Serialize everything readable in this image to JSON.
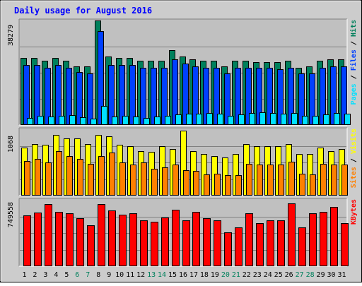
{
  "title": "Daily usage for August 2016",
  "colors": {
    "frame_bg": "#cccccc",
    "panel_bg": "#c0c0c0",
    "title": "#0000ff",
    "hits": "#00805c",
    "files": "#0040ff",
    "pages": "#00e0ff",
    "visits": "#ffff00",
    "sites": "#ff8000",
    "kbytes": "#ff0000",
    "weekend_label": "#00805c",
    "weekday_label": "#000000"
  },
  "chart_data": [
    {
      "type": "bar",
      "panel": "hits-files-pages",
      "max_label": "38279",
      "legend": [
        {
          "name": "Pages",
          "color_key": "pages"
        },
        {
          "name": "Files",
          "color_key": "files"
        },
        {
          "name": "Hits",
          "color_key": "hits"
        }
      ],
      "categories": [
        "1",
        "2",
        "3",
        "4",
        "5",
        "6",
        "7",
        "8",
        "9",
        "10",
        "11",
        "12",
        "13",
        "14",
        "15",
        "16",
        "17",
        "18",
        "19",
        "20",
        "21",
        "22",
        "23",
        "24",
        "25",
        "26",
        "27",
        "28",
        "29",
        "30",
        "31"
      ],
      "weekend_days": [
        "6",
        "7",
        "13",
        "14",
        "20",
        "21",
        "27",
        "28"
      ],
      "ylim": [
        0,
        38279
      ],
      "series": [
        {
          "name": "Hits",
          "color_key": "hits",
          "values": [
            24660,
            24660,
            23600,
            24660,
            23600,
            21510,
            21510,
            38279,
            25190,
            24660,
            24660,
            23600,
            23600,
            23600,
            27300,
            25190,
            24140,
            23600,
            23600,
            21510,
            23600,
            23600,
            23100,
            23100,
            23100,
            23600,
            21000,
            21510,
            23600,
            24140,
            24140
          ]
        },
        {
          "name": "Files",
          "color_key": "files",
          "values": [
            22000,
            22000,
            21000,
            22000,
            21000,
            19500,
            19000,
            34400,
            22000,
            22000,
            22000,
            21000,
            21000,
            21000,
            24100,
            22500,
            21500,
            21000,
            21000,
            19000,
            21000,
            21000,
            21000,
            21000,
            20500,
            21000,
            19000,
            19000,
            21000,
            21500,
            21500
          ]
        },
        {
          "name": "Pages",
          "color_key": "pages",
          "values": [
            2700,
            3300,
            3000,
            3300,
            3500,
            2900,
            2300,
            7000,
            3000,
            3300,
            3000,
            2700,
            3000,
            3300,
            3800,
            4100,
            4100,
            4400,
            4100,
            3300,
            3800,
            4300,
            4600,
            4300,
            4100,
            4400,
            3300,
            3300,
            3900,
            4300,
            4100
          ]
        }
      ]
    },
    {
      "type": "bar",
      "panel": "visits-sites",
      "max_label": "1068",
      "legend": [
        {
          "name": "Sites",
          "color_key": "sites"
        },
        {
          "name": "Visits",
          "color_key": "visits"
        }
      ],
      "categories": [
        "1",
        "2",
        "3",
        "4",
        "5",
        "6",
        "7",
        "8",
        "9",
        "10",
        "11",
        "12",
        "13",
        "14",
        "15",
        "16",
        "17",
        "18",
        "19",
        "20",
        "21",
        "22",
        "23",
        "24",
        "25",
        "26",
        "27",
        "28",
        "29",
        "30",
        "31"
      ],
      "ylim": [
        0,
        1068
      ],
      "series": [
        {
          "name": "Visits",
          "color_key": "visits",
          "values": [
            770,
            830,
            815,
            980,
            915,
            915,
            825,
            975,
            950,
            815,
            795,
            715,
            710,
            795,
            745,
            1045,
            715,
            670,
            640,
            610,
            675,
            835,
            800,
            800,
            800,
            830,
            670,
            665,
            770,
            720,
            750
          ]
        },
        {
          "name": "Sites",
          "color_key": "sites",
          "values": [
            555,
            590,
            535,
            715,
            635,
            590,
            510,
            640,
            690,
            535,
            495,
            535,
            435,
            455,
            495,
            410,
            395,
            345,
            350,
            335,
            330,
            510,
            500,
            500,
            505,
            540,
            355,
            340,
            515,
            495,
            500
          ]
        }
      ]
    },
    {
      "type": "bar",
      "panel": "kbytes",
      "max_label": "749558",
      "legend": [
        {
          "name": "KBytes",
          "color_key": "kbytes"
        }
      ],
      "categories": [
        "1",
        "2",
        "3",
        "4",
        "5",
        "6",
        "7",
        "8",
        "9",
        "10",
        "11",
        "12",
        "13",
        "14",
        "15",
        "16",
        "17",
        "18",
        "19",
        "20",
        "21",
        "22",
        "23",
        "24",
        "25",
        "26",
        "27",
        "28",
        "29",
        "30",
        "31"
      ],
      "ylim": [
        0,
        749558
      ],
      "series": [
        {
          "name": "KBytes",
          "color_key": "kbytes",
          "values": [
            575000,
            610000,
            705000,
            615000,
            600000,
            545000,
            465000,
            700000,
            630000,
            580000,
            600000,
            515000,
            500000,
            550000,
            635000,
            515000,
            615000,
            545000,
            515000,
            380000,
            440000,
            600000,
            490000,
            515000,
            515000,
            710000,
            440000,
            600000,
            615000,
            670000,
            490000
          ]
        }
      ]
    }
  ]
}
